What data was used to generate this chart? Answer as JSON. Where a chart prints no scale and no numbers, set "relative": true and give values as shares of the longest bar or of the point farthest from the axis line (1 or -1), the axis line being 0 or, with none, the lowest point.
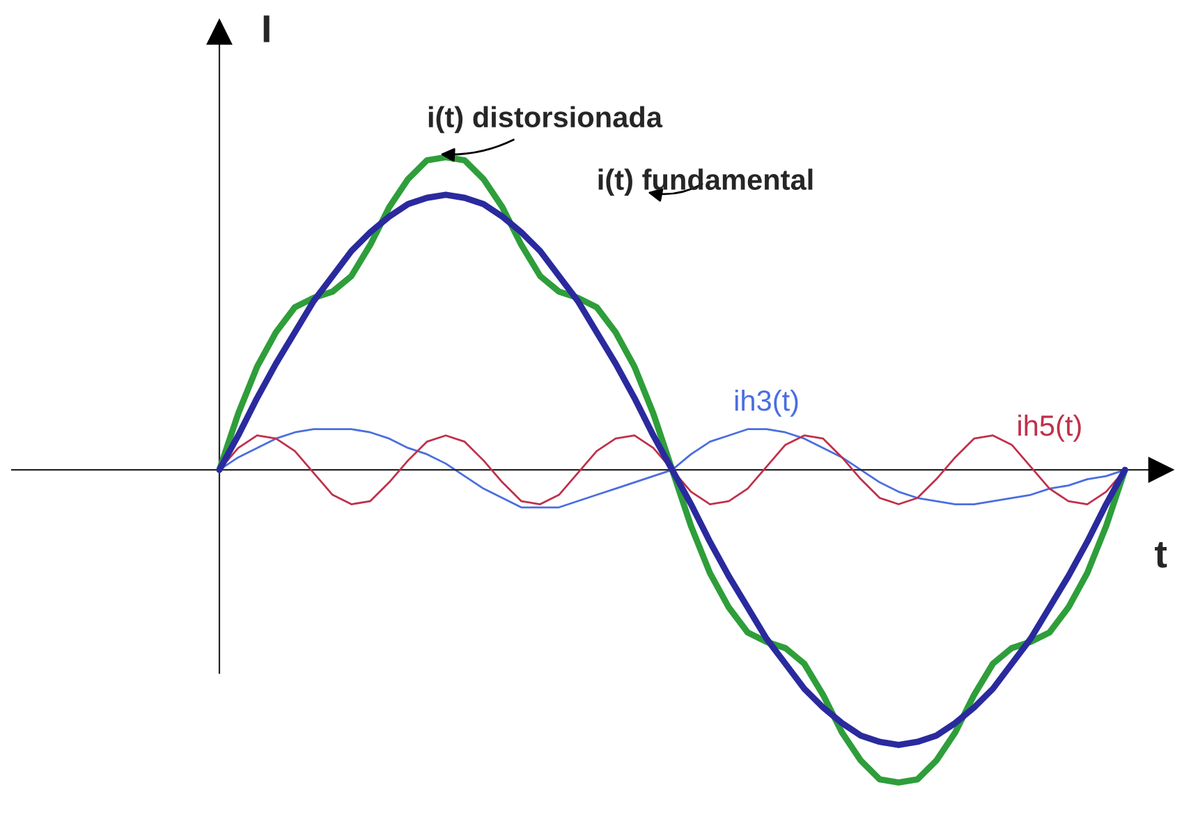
{
  "chart_data": {
    "type": "line",
    "relative": true,
    "xlabel": "t",
    "ylabel": "I",
    "legend": false,
    "categories": [
      null,
      null,
      null,
      null,
      null,
      null,
      null,
      null,
      null,
      null,
      null,
      null,
      null,
      null,
      null,
      null,
      null,
      null,
      null,
      null,
      null,
      null,
      null,
      null,
      null,
      null,
      null,
      null,
      null,
      null,
      null,
      null,
      null,
      null,
      null,
      null,
      null,
      null,
      null,
      null,
      null,
      null,
      null,
      null,
      null,
      null,
      null,
      null,
      null
    ],
    "series": [
      {
        "name": "ih3(t)",
        "color": "#4a6ee0",
        "values": [
          0,
          0.04,
          0.07,
          0.1,
          0.12,
          0.13,
          0.13,
          0.13,
          0.12,
          0.1,
          0.07,
          0.05,
          0.02,
          -0.02,
          -0.06,
          -0.09,
          -0.12,
          -0.12,
          -0.12,
          -0.1,
          -0.08,
          -0.06,
          -0.04,
          -0.02,
          0,
          0.05,
          0.09,
          0.11,
          0.13,
          0.13,
          0.12,
          0.1,
          0.07,
          0.04,
          0,
          -0.04,
          -0.07,
          -0.09,
          -0.1,
          -0.11,
          -0.11,
          -0.1,
          -0.09,
          -0.08,
          -0.06,
          -0.05,
          -0.03,
          -0.02,
          0
        ]
      },
      {
        "name": "ih5(t)",
        "color": "#c0304a",
        "values": [
          0,
          0.07,
          0.11,
          0.1,
          0.06,
          -0.01,
          -0.08,
          -0.11,
          -0.1,
          -0.04,
          0.03,
          0.09,
          0.11,
          0.09,
          0.03,
          -0.04,
          -0.1,
          -0.11,
          -0.08,
          -0.01,
          0.06,
          0.1,
          0.11,
          0.07,
          0,
          -0.07,
          -0.11,
          -0.1,
          -0.06,
          0.01,
          0.08,
          0.11,
          0.1,
          0.04,
          -0.03,
          -0.09,
          -0.11,
          -0.09,
          -0.03,
          0.04,
          0.1,
          0.11,
          0.08,
          0.01,
          -0.06,
          -0.1,
          -0.11,
          -0.07,
          0
        ]
      },
      {
        "name": "i(t) distorsionada",
        "color": "#2e9e3a",
        "values": [
          0,
          0.18,
          0.33,
          0.44,
          0.52,
          0.55,
          0.57,
          0.62,
          0.72,
          0.84,
          0.93,
          0.99,
          1,
          0.99,
          0.93,
          0.84,
          0.72,
          0.62,
          0.57,
          0.55,
          0.52,
          0.44,
          0.33,
          0.18,
          0,
          -0.18,
          -0.33,
          -0.44,
          -0.52,
          -0.55,
          -0.57,
          -0.62,
          -0.72,
          -0.84,
          -0.93,
          -0.99,
          -1,
          -0.99,
          -0.93,
          -0.84,
          -0.72,
          -0.62,
          -0.57,
          -0.55,
          -0.52,
          -0.44,
          -0.33,
          -0.18,
          0
        ]
      },
      {
        "name": "i(t) fundamental",
        "color": "#2a2a9e",
        "values": [
          0,
          0.11,
          0.23,
          0.34,
          0.44,
          0.54,
          0.62,
          0.7,
          0.76,
          0.81,
          0.85,
          0.87,
          0.88,
          0.87,
          0.85,
          0.81,
          0.76,
          0.7,
          0.62,
          0.54,
          0.44,
          0.34,
          0.23,
          0.11,
          0,
          -0.11,
          -0.23,
          -0.34,
          -0.44,
          -0.54,
          -0.62,
          -0.7,
          -0.76,
          -0.81,
          -0.85,
          -0.87,
          -0.88,
          -0.87,
          -0.85,
          -0.81,
          -0.76,
          -0.7,
          -0.62,
          -0.54,
          -0.44,
          -0.34,
          -0.23,
          -0.11,
          0
        ]
      }
    ],
    "line_style": "solid",
    "marker": "none"
  }
}
